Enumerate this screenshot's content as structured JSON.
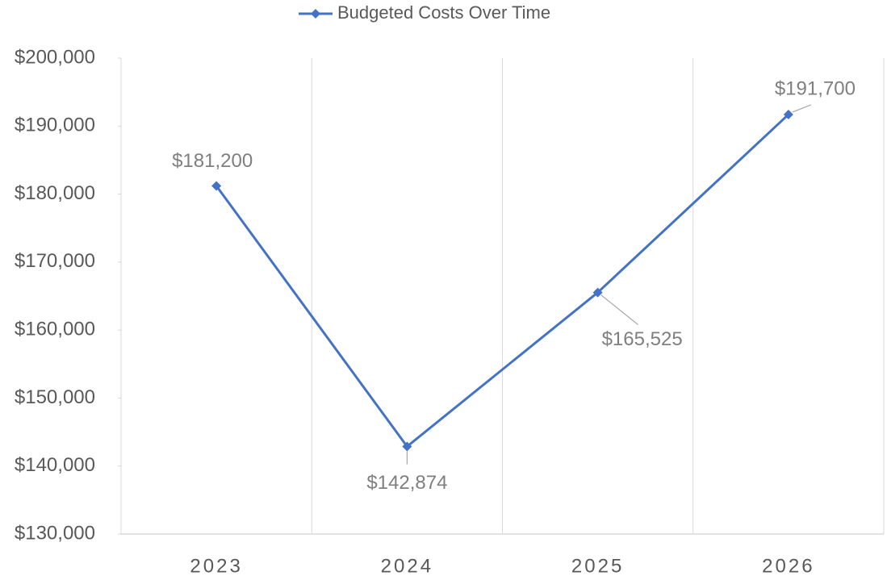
{
  "chart_data": {
    "type": "line",
    "categories": [
      "2023",
      "2024",
      "2025",
      "2026"
    ],
    "series": [
      {
        "name": "Budgeted Costs Over Time",
        "color": "#4472c4",
        "values": [
          181200,
          142874,
          165525,
          191700
        ],
        "value_labels": [
          "$181,200",
          "$142,874",
          "$165,525",
          "$191,700"
        ]
      }
    ],
    "ylim": [
      130000,
      200000
    ],
    "yticks": [
      {
        "value": 130000,
        "label": "$130,000"
      },
      {
        "value": 140000,
        "label": "$140,000"
      },
      {
        "value": 150000,
        "label": "$150,000"
      },
      {
        "value": 160000,
        "label": "$160,000"
      },
      {
        "value": 170000,
        "label": "$170,000"
      },
      {
        "value": 180000,
        "label": "$180,000"
      },
      {
        "value": 190000,
        "label": "$190,000"
      },
      {
        "value": 200000,
        "label": "$200,000"
      }
    ],
    "legend": "top"
  }
}
